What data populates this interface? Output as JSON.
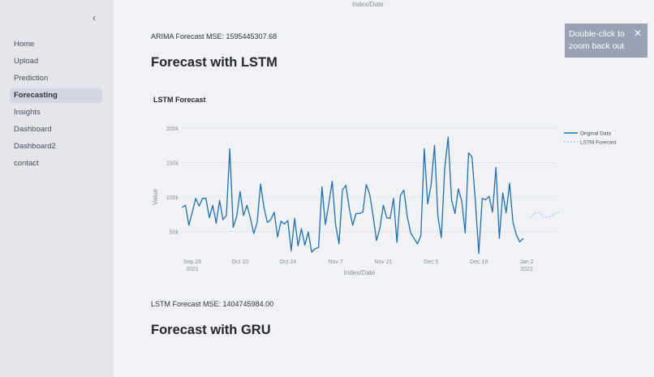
{
  "sidebar": {
    "collapse_icon": "‹",
    "items": [
      {
        "label": "Home",
        "active": false
      },
      {
        "label": "Upload",
        "active": false
      },
      {
        "label": "Prediction",
        "active": false
      },
      {
        "label": "Forecasting",
        "active": true
      },
      {
        "label": "Insights",
        "active": false
      },
      {
        "label": "Dashboard",
        "active": false
      },
      {
        "label": "Dashboard2",
        "active": false
      },
      {
        "label": "contact",
        "active": false
      }
    ]
  },
  "main": {
    "prev_chart_xlabel": "Index/Date",
    "arima_mse": "ARIMA Forecast MSE: 1595445307.68",
    "lstm_heading": "Forecast with LSTM",
    "lstm_mse": "LSTM Forecast MSE: 1404745984.00",
    "gru_heading": "Forecast with GRU"
  },
  "toast": {
    "text_line1": "Double-click to",
    "text_line2": "zoom back out",
    "close_icon": "✕"
  },
  "colors": {
    "original": "#1f6fb2",
    "forecast": "#8ec2e8",
    "grid": "#e2e5ec",
    "tick": "#8a8d97"
  },
  "chart_data": {
    "type": "line",
    "title": "LSTM Forecast",
    "xlabel": "Index/Date",
    "ylabel": "Value",
    "ylim": [
      0,
      200000
    ],
    "yticks": [
      "50k",
      "100k",
      "150k",
      "200k"
    ],
    "ytick_values": [
      50000,
      100000,
      150000,
      200000
    ],
    "xticks": [
      {
        "label": "Sep 26",
        "sub": "2021",
        "day": 0
      },
      {
        "label": "Oct 10",
        "sub": "",
        "day": 14
      },
      {
        "label": "Oct 24",
        "sub": "",
        "day": 28
      },
      {
        "label": "Nov 7",
        "sub": "",
        "day": 42
      },
      {
        "label": "Nov 21",
        "sub": "",
        "day": 56
      },
      {
        "label": "Dec 5",
        "sub": "",
        "day": 70
      },
      {
        "label": "Dec 19",
        "sub": "",
        "day": 84
      },
      {
        "label": "Jan 2",
        "sub": "2022",
        "day": 98
      }
    ],
    "legend": {
      "position": "right",
      "entries": [
        "Original Data",
        "LSTM Forecast"
      ]
    },
    "grid": true,
    "series": [
      {
        "name": "Original Data",
        "style": "solid",
        "start_day": -3,
        "values": [
          85000,
          88000,
          59000,
          78000,
          98000,
          87000,
          98000,
          98000,
          70000,
          88000,
          62000,
          95000,
          67000,
          73000,
          170000,
          56000,
          72000,
          108000,
          73000,
          88000,
          70000,
          47000,
          63000,
          119000,
          85000,
          63000,
          67000,
          78000,
          42000,
          65000,
          61000,
          66000,
          22000,
          69000,
          29000,
          54000,
          30000,
          49000,
          20000,
          25000,
          27000,
          115000,
          60000,
          90000,
          123000,
          60000,
          32000,
          110000,
          117000,
          84000,
          59000,
          76000,
          76000,
          78000,
          118000,
          104000,
          73000,
          37000,
          55000,
          88000,
          70000,
          69000,
          98000,
          34000,
          102000,
          110000,
          72000,
          48000,
          40000,
          32000,
          44000,
          170000,
          90000,
          118000,
          175000,
          72000,
          41000,
          142000,
          187000,
          96000,
          76000,
          112000,
          94000,
          48000,
          164000,
          158000,
          93000,
          18000,
          98000,
          96000,
          101000,
          78000,
          143000,
          40000,
          106000,
          77000,
          120000,
          63000,
          45000,
          35000,
          40000
        ]
      },
      {
        "name": "LSTM Forecast",
        "style": "dotted",
        "start_day": 99,
        "values": [
          70000,
          75000,
          78000,
          76000,
          72000,
          70000,
          72000,
          75000,
          77000,
          78000
        ]
      }
    ]
  }
}
